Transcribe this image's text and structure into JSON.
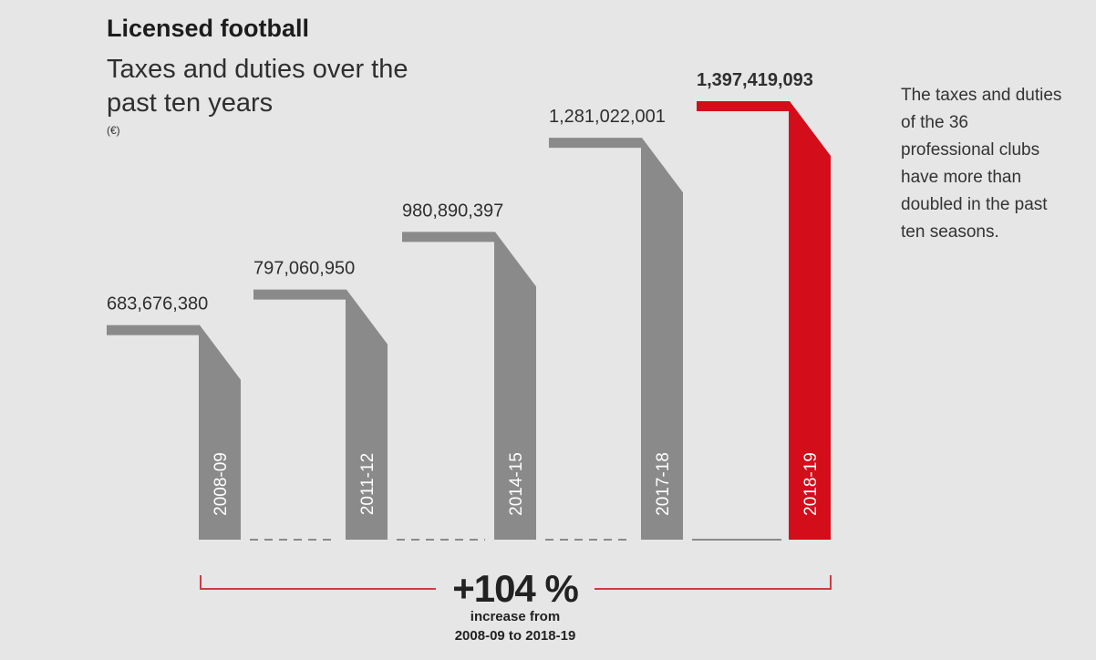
{
  "header": {
    "title": "Licensed football",
    "subtitle": "Taxes and duties over the past ten years",
    "unit": "(€)"
  },
  "note": "The taxes and duties of the 36 professional clubs have more than doubled in the past ten seasons.",
  "summary": {
    "percent": "+104 %",
    "caption_line1": "increase from",
    "caption_line2": "2008-09 to 2018-19"
  },
  "colors": {
    "bar": "#8a8a8a",
    "highlight": "#d40d1b",
    "bracket": "#d13a44",
    "dash": "#8a8a8a"
  },
  "chart_data": {
    "type": "bar",
    "title": "Licensed football – Taxes and duties over the past ten years",
    "ylabel": "€",
    "categories": [
      "2008-09",
      "2011-12",
      "2014-15",
      "2017-18",
      "2018-19"
    ],
    "values": [
      683676380,
      797060950,
      980890397,
      1281022001,
      1397419093
    ],
    "value_labels": [
      "683,676,380",
      "797,060,950",
      "980,890,397",
      "1,281,022,001",
      "1,397,419,093"
    ],
    "highlight_index": 4,
    "ylim": [
      0,
      1397419093
    ]
  }
}
